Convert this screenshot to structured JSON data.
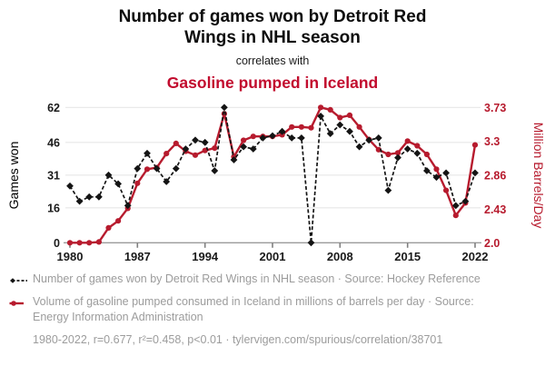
{
  "header": {
    "title": "Number of games won by Detroit Red Wings in NHL season",
    "connector": "correlates with",
    "subtitle": "Gasoline pumped in Iceland"
  },
  "colors": {
    "title_red": "#c20c2e",
    "accent_red": "#b71b2e",
    "series_black": "#141414",
    "tick_black": "#1a1a1a",
    "grid": "#e7e7e7",
    "axis": "#9b9b9b",
    "legend_gray": "#9c9c9c"
  },
  "chart_data": {
    "type": "line",
    "x": [
      1980,
      1981,
      1982,
      1983,
      1984,
      1985,
      1986,
      1987,
      1988,
      1989,
      1990,
      1991,
      1992,
      1993,
      1994,
      1995,
      1996,
      1997,
      1998,
      1999,
      2000,
      2001,
      2002,
      2003,
      2004,
      2005,
      2006,
      2007,
      2008,
      2009,
      2010,
      2011,
      2012,
      2013,
      2014,
      2015,
      2016,
      2017,
      2018,
      2019,
      2020,
      2021,
      2022
    ],
    "series": [
      {
        "name": "Number of games won by Detroit Red Wings in NHL season",
        "axis": "left",
        "color": "#141414",
        "style": "dashed-diamond",
        "values": [
          26,
          19,
          21,
          21,
          31,
          27,
          17,
          34,
          41,
          34,
          28,
          34,
          43,
          47,
          46,
          33,
          62,
          38,
          44,
          43,
          48,
          49,
          51,
          48,
          48,
          0,
          58,
          50,
          54,
          51,
          44,
          47,
          48,
          24,
          39,
          43,
          41,
          33,
          30,
          32,
          17,
          19,
          32
        ]
      },
      {
        "name": "Volume of gasoline pumped consumed in Iceland in millions of barrels per day",
        "axis": "right",
        "color": "#b71b2e",
        "style": "solid-circle",
        "values": [
          2.0,
          2.0,
          2.0,
          2.01,
          2.19,
          2.28,
          2.44,
          2.76,
          2.94,
          2.96,
          3.14,
          3.27,
          3.17,
          3.12,
          3.18,
          3.21,
          3.65,
          3.1,
          3.31,
          3.36,
          3.36,
          3.36,
          3.38,
          3.48,
          3.48,
          3.47,
          3.73,
          3.7,
          3.6,
          3.63,
          3.48,
          3.32,
          3.19,
          3.13,
          3.15,
          3.3,
          3.24,
          3.13,
          2.94,
          2.67,
          2.35,
          2.51,
          3.25
        ]
      }
    ],
    "left_axis": {
      "label": "Games won",
      "ticks": [
        0,
        16,
        31,
        46,
        62
      ],
      "range": [
        0,
        62
      ]
    },
    "right_axis": {
      "label": "Million Barrels/Day",
      "ticks": [
        "2.0",
        "2.43",
        "2.86",
        "3.3",
        "3.73"
      ],
      "tick_values": [
        2.0,
        2.43,
        2.86,
        3.3,
        3.73
      ],
      "range": [
        2.0,
        3.73
      ]
    },
    "x_axis": {
      "ticks": [
        1980,
        1987,
        1994,
        2001,
        2008,
        2015,
        2022
      ],
      "range": [
        1980,
        2022
      ]
    },
    "grid": "horizontal",
    "legend_position": "bottom"
  },
  "legend": {
    "items": [
      {
        "icon": "black-dashed-diamond",
        "label": "Number of games won by Detroit Red Wings in NHL season · Source: Hockey Reference"
      },
      {
        "icon": "red-solid-line",
        "label": "Volume of gasoline pumped consumed in Iceland in millions of barrels per day · Source: Energy Information Administration"
      }
    ]
  },
  "footer": {
    "stats": "1980-2022, r=0.677, r²=0.458, p<0.01 · tylervigen.com/spurious/correlation/38701"
  }
}
